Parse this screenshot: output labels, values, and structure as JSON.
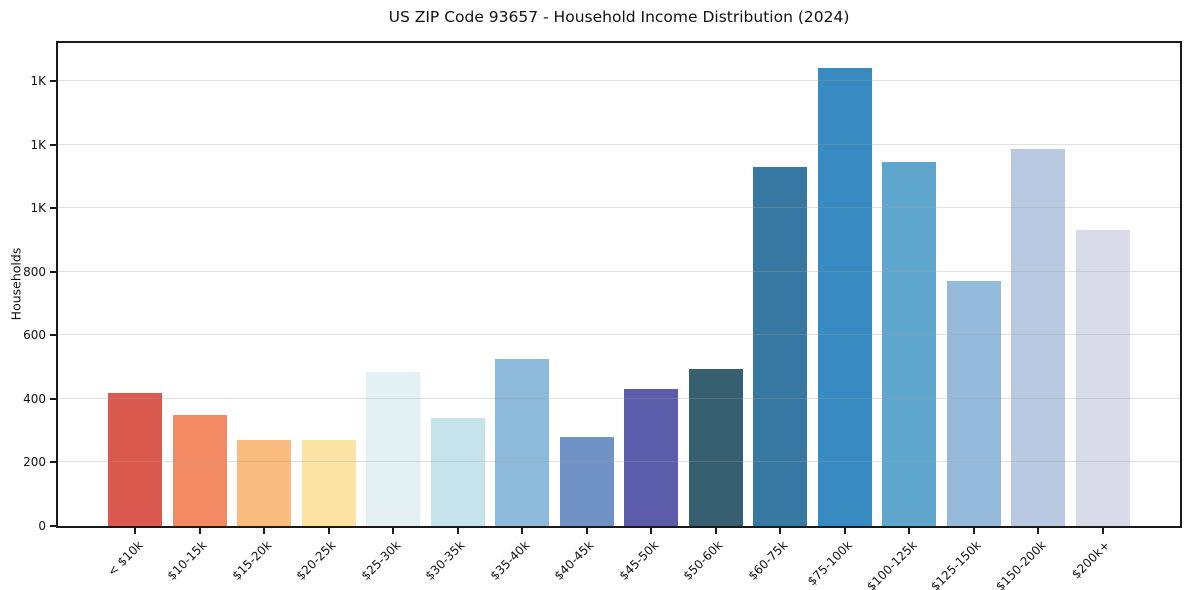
{
  "title": "US ZIP Code 93657 - Household Income Distribution (2024)",
  "ylabel": "Households",
  "chart_data": {
    "type": "bar",
    "title": "US ZIP Code 93657 - Household Income Distribution (2024)",
    "xlabel": "",
    "ylabel": "Households",
    "categories": [
      "< $10k",
      "$10-15k",
      "$15-20k",
      "$20-25k",
      "$25-30k",
      "$30-35k",
      "$35-40k",
      "$40-45k",
      "$45-50k",
      "$50-60k",
      "$60-75k",
      "$75-100k",
      "$100-125k",
      "$125-150k",
      "$150-200k",
      "$200k+"
    ],
    "values": [
      420,
      350,
      270,
      270,
      485,
      340,
      525,
      280,
      430,
      495,
      1130,
      1440,
      1145,
      770,
      1185,
      930
    ],
    "bar_colors": [
      "#da5a50",
      "#f28a63",
      "#f9bc7e",
      "#fce3a4",
      "#e4f1f3",
      "#c6e3ec",
      "#8db9da",
      "#7192c7",
      "#5b5caa",
      "#36606f",
      "#3779a3",
      "#378bc0",
      "#5fa6cc",
      "#93bada",
      "#b9c9e1",
      "#d9daea"
    ],
    "ylim": [
      0,
      1520
    ],
    "yticks": [
      {
        "value": 0,
        "label": "0"
      },
      {
        "value": 200,
        "label": "200"
      },
      {
        "value": 400,
        "label": "400"
      },
      {
        "value": 600,
        "label": "600"
      },
      {
        "value": 800,
        "label": "800"
      },
      {
        "value": 1000,
        "label": "1K"
      },
      {
        "value": 1200,
        "label": "1K"
      },
      {
        "value": 1400,
        "label": "1K"
      }
    ],
    "grid": "horizontal",
    "legend": "none",
    "background": "#ffffff",
    "spine_color": "#1a1a1a"
  }
}
